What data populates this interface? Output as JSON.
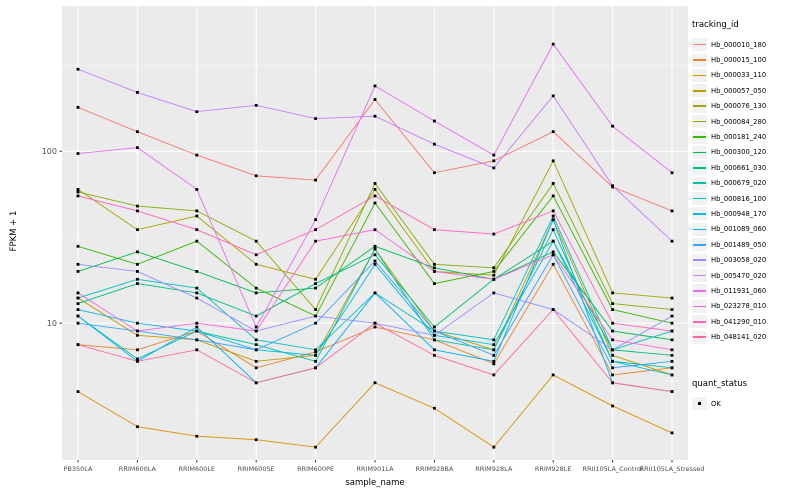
{
  "chart_data": {
    "type": "line",
    "title": "",
    "xlabel": "sample_name",
    "ylabel": "FPKM + 1",
    "y_scale": "log10",
    "ylim": [
      1.6,
      700
    ],
    "y_major_ticks": [
      10,
      100
    ],
    "y_minor_ticks": [
      3.162,
      31.62,
      316.2
    ],
    "panel_color": "#EBEBEB",
    "grid_major_color": "#FFFFFF",
    "grid_minor_color": "#F5F5F5",
    "point_color": "#000000",
    "point_shape": "square",
    "categories": [
      "PB350LA",
      "RRIM600LA",
      "RRIM600LE",
      "RRIM600SE",
      "RRIM600PE",
      "RRIM901LA",
      "RRIM928BA",
      "RRIM928LA",
      "RRIM928LE",
      "RRII105LA_Control",
      "RRII105LA_Stressed"
    ],
    "series": [
      {
        "name": "Hb_000010_180",
        "color": "#F8766D",
        "values": [
          180,
          130,
          95,
          72,
          68,
          200,
          75,
          88,
          130,
          62,
          45
        ]
      },
      {
        "name": "Hb_000015_100",
        "color": "#EA8331",
        "values": [
          7.5,
          7,
          9,
          5.5,
          6.8,
          9.5,
          8,
          5.8,
          22,
          5,
          5.5
        ]
      },
      {
        "name": "Hb_000033_110",
        "color": "#D89000",
        "values": [
          4,
          2.5,
          2.2,
          2.1,
          1.9,
          4.5,
          3.2,
          1.9,
          5,
          3.3,
          2.3
        ]
      },
      {
        "name": "Hb_000057_050",
        "color": "#C09B00",
        "values": [
          14,
          8.5,
          8,
          6,
          6.5,
          27,
          9,
          7,
          40,
          6.5,
          5
        ]
      },
      {
        "name": "Hb_000076_130",
        "color": "#A3A500",
        "values": [
          60,
          35,
          42,
          22,
          18,
          60,
          20,
          19,
          88,
          15,
          14
        ]
      },
      {
        "name": "Hb_000084_280",
        "color": "#7CAE00",
        "values": [
          58,
          48,
          45,
          30,
          12,
          65,
          22,
          21,
          65,
          13,
          12
        ]
      },
      {
        "name": "Hb_000181_240",
        "color": "#39B600",
        "values": [
          28,
          22,
          30,
          16,
          11,
          50,
          17,
          20,
          55,
          12,
          10
        ]
      },
      {
        "name": "Hb_000300_120",
        "color": "#00BB4E",
        "values": [
          20,
          26,
          20,
          15,
          16,
          28,
          21,
          18,
          26,
          9,
          8
        ]
      },
      {
        "name": "Hb_000661_030",
        "color": "#00BF7D",
        "values": [
          13,
          17,
          15,
          11,
          17,
          25,
          9.5,
          18,
          30,
          7,
          6.5
        ]
      },
      {
        "name": "Hb_000679_020",
        "color": "#00C1A3",
        "values": [
          11,
          6.2,
          9,
          7.5,
          6,
          27,
          8,
          7,
          35,
          6,
          5.5
        ]
      },
      {
        "name": "Hb_000816_100",
        "color": "#00BFC4",
        "values": [
          14,
          18,
          16,
          8,
          7,
          15,
          9,
          8,
          42,
          7,
          9
        ]
      },
      {
        "name": "Hb_000948_170",
        "color": "#00BAE0",
        "values": [
          12,
          10,
          9,
          7,
          6.5,
          22,
          8.5,
          7.5,
          30,
          6,
          5
        ]
      },
      {
        "name": "Hb_001089_060",
        "color": "#00B0F6",
        "values": [
          11,
          6,
          9.5,
          4.5,
          5.5,
          15,
          7,
          6,
          40,
          4.5,
          4
        ]
      },
      {
        "name": "Hb_001489_050",
        "color": "#35A2FF",
        "values": [
          10,
          9,
          8,
          7,
          10,
          23,
          9,
          6.5,
          25,
          5.5,
          6
        ]
      },
      {
        "name": "Hb_003058_020",
        "color": "#9590FF",
        "values": [
          22,
          20,
          14,
          9,
          11,
          10,
          8.5,
          15,
          12,
          7,
          11
        ]
      },
      {
        "name": "Hb_005470_020",
        "color": "#C77CFF",
        "values": [
          300,
          220,
          170,
          185,
          155,
          160,
          110,
          80,
          210,
          63,
          30
        ]
      },
      {
        "name": "Hb_011931_060",
        "color": "#E76BF3",
        "values": [
          97,
          105,
          60,
          9.5,
          40,
          240,
          150,
          95,
          420,
          140,
          75
        ]
      },
      {
        "name": "Hb_023278_010",
        "color": "#FA62DB",
        "values": [
          15,
          9,
          10,
          9,
          30,
          35,
          20,
          18,
          25,
          8,
          7
        ]
      },
      {
        "name": "Hb_041290_010",
        "color": "#FF62BC",
        "values": [
          55,
          45,
          35,
          25,
          35,
          55,
          35,
          33,
          45,
          10,
          9
        ]
      },
      {
        "name": "Hb_048141_020",
        "color": "#FF6A98",
        "values": [
          7.5,
          6,
          7,
          4.5,
          5.5,
          10,
          6.5,
          5,
          12,
          4.5,
          4
        ]
      }
    ],
    "legend": {
      "color_title": "tracking_id",
      "shape_title": "quant_status",
      "shape_items": [
        {
          "label": "OK",
          "marker": "black-square"
        }
      ],
      "position": "right"
    }
  }
}
